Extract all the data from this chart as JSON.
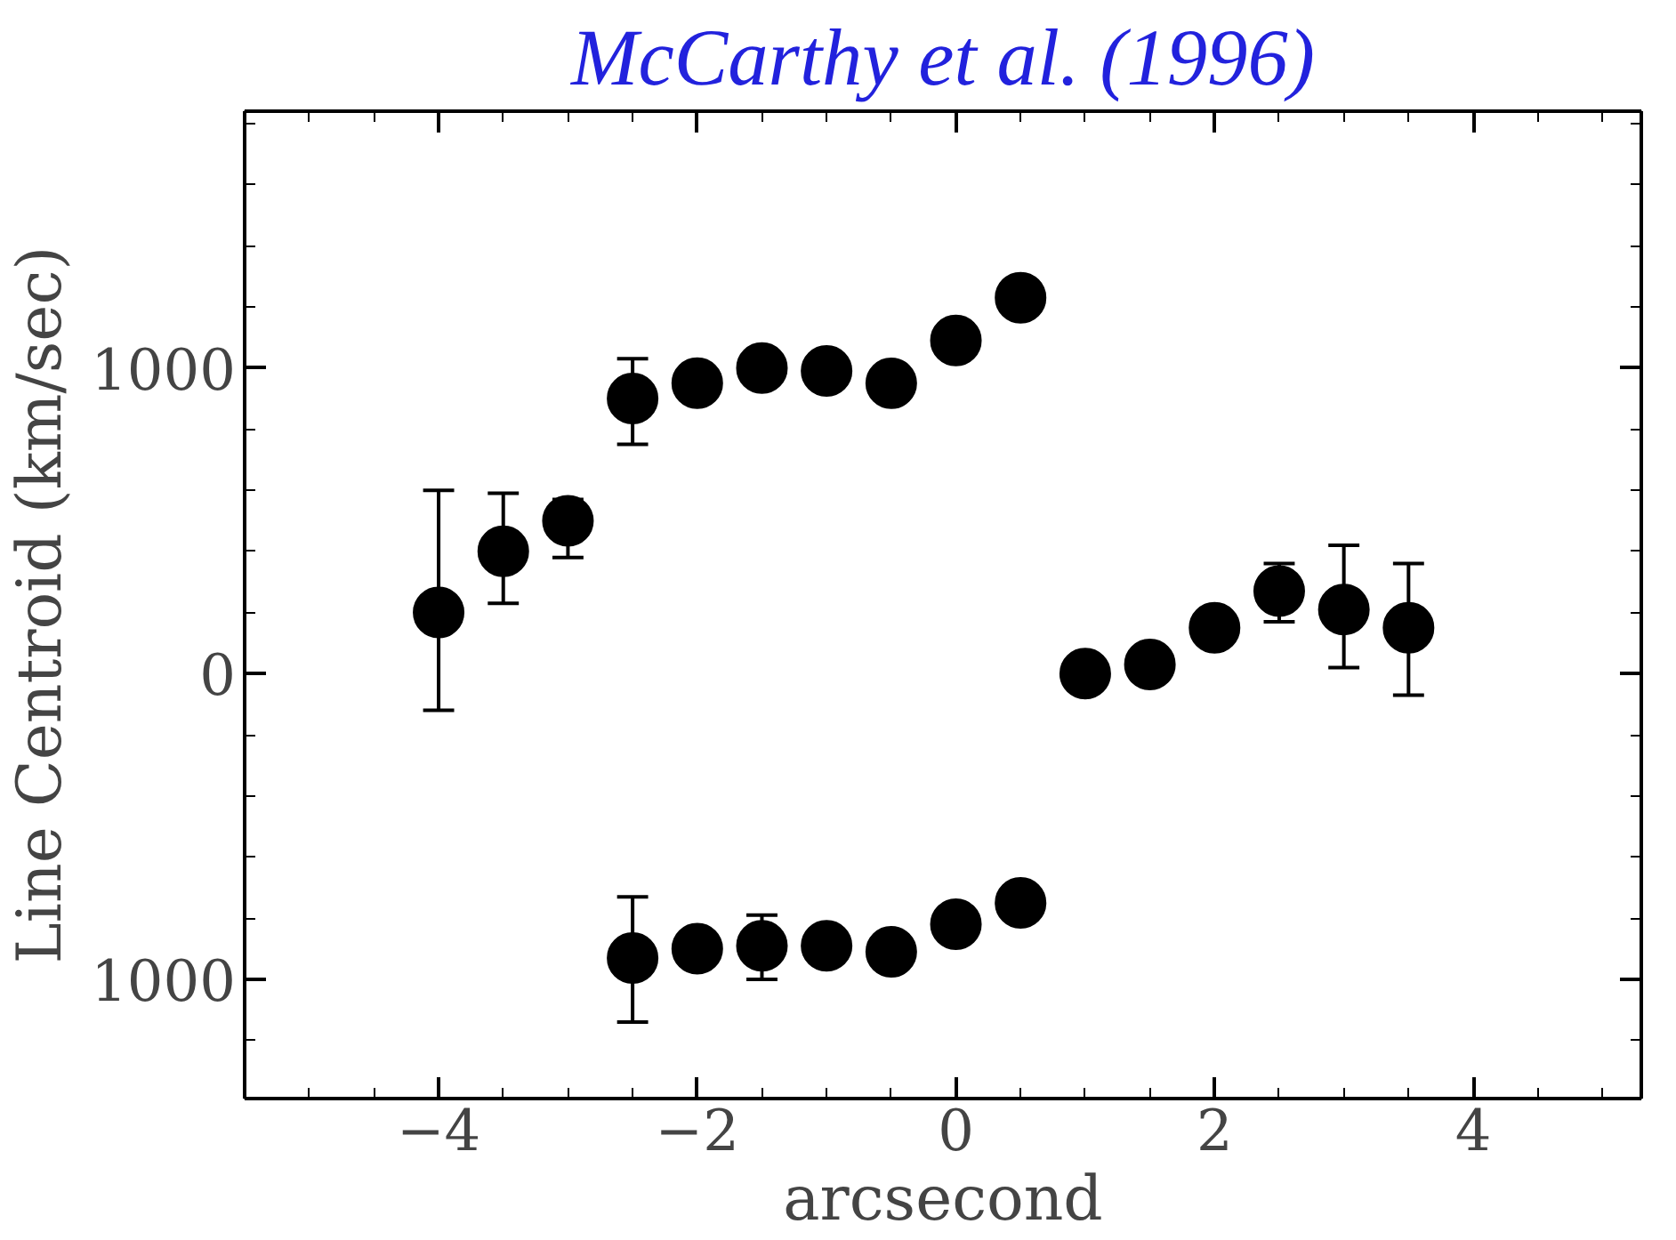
{
  "chart_data": {
    "type": "scatter",
    "title": "McCarthy et al. (1996)",
    "xlabel": "arcsecond",
    "ylabel": "Line Centroid (km/sec)",
    "marker": "circle",
    "grid": false,
    "xlim": [
      -5.5,
      5.3
    ],
    "ylim": [
      -1390,
      1840
    ],
    "xticks": [
      -4,
      -2,
      0,
      2,
      4
    ],
    "yticks": [
      {
        "value": -1000,
        "label": "1000"
      },
      0,
      1000
    ],
    "series": [
      {
        "color": "#000000",
        "x": [
          -4,
          -3.5,
          -3,
          -2.5,
          -2,
          -1.5,
          -1,
          -0.5,
          0,
          0.5
        ],
        "values": [
          200,
          400,
          500,
          900,
          950,
          1000,
          990,
          950,
          1090,
          1230
        ],
        "errors": [
          [
            -120,
            600
          ],
          [
            230,
            590
          ],
          [
            380,
            570
          ],
          [
            750,
            1030
          ],
          null,
          null,
          null,
          null,
          null,
          null
        ]
      },
      {
        "color": "#000000",
        "x": [
          -2.5,
          -2,
          -1.5,
          -1,
          -0.5,
          0,
          0.5
        ],
        "values": [
          -930,
          -900,
          -890,
          -890,
          -910,
          -820,
          -750
        ],
        "errors": [
          [
            -1140,
            -730
          ],
          null,
          [
            -1000,
            -790
          ],
          null,
          null,
          null,
          null
        ]
      },
      {
        "color": "#000000",
        "x": [
          1,
          1.5,
          2,
          2.5,
          3,
          3.5
        ],
        "values": [
          0,
          30,
          150,
          270,
          210,
          150
        ],
        "errors": [
          null,
          null,
          null,
          [
            170,
            360
          ],
          [
            20,
            420
          ],
          [
            -70,
            360
          ]
        ]
      }
    ]
  }
}
